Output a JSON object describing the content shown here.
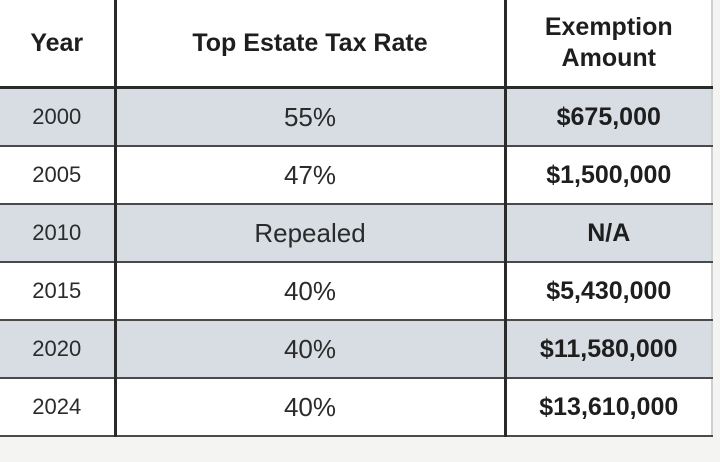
{
  "table": {
    "headers": {
      "year": "Year",
      "rate": "Top Estate Tax Rate",
      "exemption_line1": "Exemption",
      "exemption_line2": "Amount"
    },
    "rows": [
      {
        "year": "2000",
        "rate": "55%",
        "exemption": "$675,000",
        "shaded": true
      },
      {
        "year": "2005",
        "rate": "47%",
        "exemption": "$1,500,000",
        "shaded": false
      },
      {
        "year": "2010",
        "rate": "Repealed",
        "exemption": "N/A",
        "shaded": true
      },
      {
        "year": "2015",
        "rate": "40%",
        "exemption": "$5,430,000",
        "shaded": false
      },
      {
        "year": "2020",
        "rate": "40%",
        "exemption": "$11,580,000",
        "shaded": true
      },
      {
        "year": "2024",
        "rate": "40%",
        "exemption": "$13,610,000",
        "shaded": false
      }
    ]
  },
  "colors": {
    "shaded_row": "#d7dde3",
    "plain_row": "#ffffff",
    "rule": "#2a2a2a",
    "text": "#1e1e1e"
  }
}
